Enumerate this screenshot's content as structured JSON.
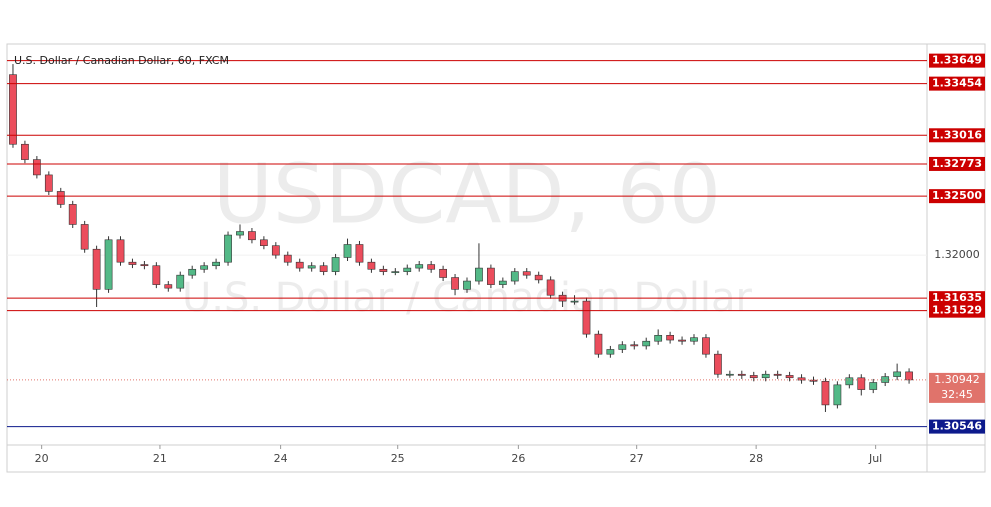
{
  "chart_data": {
    "type": "candlestick",
    "title": "U.S. Dollar / Canadian Dollar, 60, FXCM",
    "watermark": "USDCAD, 60",
    "watermark_subtitle": "U.S. Dollar / Canadian Dollar",
    "up_color": "#53b987",
    "down_color": "#eb4d5c",
    "wick_color": "#333333",
    "open": [
      1.3353,
      1.3294,
      1.3281,
      1.3268,
      1.3254,
      1.3243,
      1.3226,
      1.3205,
      1.3171,
      1.3213,
      1.3194,
      1.3192,
      1.3191,
      1.3175,
      1.3172,
      1.3183,
      1.3188,
      1.3191,
      1.3194,
      1.3217,
      1.322,
      1.3213,
      1.3208,
      1.32,
      1.3194,
      1.3189,
      1.3191,
      1.3186,
      1.3198,
      1.3209,
      1.3194,
      1.3188,
      1.3186,
      1.3186,
      1.3189,
      1.3192,
      1.3188,
      1.3181,
      1.3171,
      1.3178,
      1.3189,
      1.3175,
      1.3178,
      1.3186,
      1.3183,
      1.3179,
      1.3166,
      1.3161,
      1.3161,
      1.3133,
      1.3116,
      1.312,
      1.3124,
      1.3123,
      1.3127,
      1.3132,
      1.3128,
      1.3127,
      1.313,
      1.3116,
      1.3099,
      1.3099,
      1.3098,
      1.3096,
      1.3099,
      1.3098,
      1.3096,
      1.3094,
      1.3093,
      1.3073,
      1.309,
      1.3096,
      1.3086,
      1.3092,
      1.3097,
      1.3101
    ],
    "high": [
      1.3362,
      1.3297,
      1.3284,
      1.3271,
      1.3257,
      1.3246,
      1.3229,
      1.3208,
      1.3216,
      1.3216,
      1.3197,
      1.3195,
      1.3194,
      1.3178,
      1.3186,
      1.3191,
      1.3194,
      1.3197,
      1.322,
      1.3226,
      1.3223,
      1.3216,
      1.3211,
      1.3203,
      1.3197,
      1.3194,
      1.3194,
      1.3201,
      1.3214,
      1.3212,
      1.3197,
      1.3191,
      1.3189,
      1.3192,
      1.3195,
      1.3195,
      1.3191,
      1.3184,
      1.3181,
      1.321,
      1.3192,
      1.3181,
      1.3189,
      1.3189,
      1.3186,
      1.3182,
      1.3169,
      1.3166,
      1.3164,
      1.3136,
      1.3123,
      1.3127,
      1.3127,
      1.313,
      1.3137,
      1.3135,
      1.3131,
      1.3133,
      1.3133,
      1.3119,
      1.3102,
      1.3102,
      1.3101,
      1.3102,
      1.3102,
      1.3101,
      1.3099,
      1.3097,
      1.3096,
      1.3093,
      1.3099,
      1.3099,
      1.3095,
      1.31,
      1.3108,
      1.3104
    ],
    "low": [
      1.3291,
      1.3278,
      1.3265,
      1.3251,
      1.324,
      1.3223,
      1.3202,
      1.3156,
      1.3168,
      1.3191,
      1.3189,
      1.3188,
      1.3172,
      1.3169,
      1.3169,
      1.318,
      1.3185,
      1.3188,
      1.3191,
      1.3214,
      1.321,
      1.3205,
      1.3197,
      1.3191,
      1.3186,
      1.3186,
      1.3183,
      1.3183,
      1.3195,
      1.3191,
      1.3185,
      1.3183,
      1.3183,
      1.3183,
      1.3186,
      1.3185,
      1.3178,
      1.3166,
      1.3168,
      1.3175,
      1.3172,
      1.3172,
      1.3175,
      1.318,
      1.3176,
      1.3163,
      1.3156,
      1.3158,
      1.313,
      1.3113,
      1.3113,
      1.3117,
      1.312,
      1.312,
      1.3124,
      1.3125,
      1.3124,
      1.3124,
      1.3113,
      1.3096,
      1.3096,
      1.3095,
      1.3093,
      1.3093,
      1.3095,
      1.3093,
      1.3091,
      1.309,
      1.3067,
      1.307,
      1.3087,
      1.3081,
      1.3083,
      1.3089,
      1.3094,
      1.3091
    ],
    "close": [
      1.3294,
      1.3281,
      1.3268,
      1.3254,
      1.3243,
      1.3226,
      1.3205,
      1.3171,
      1.3213,
      1.3194,
      1.3192,
      1.3191,
      1.3175,
      1.3172,
      1.3183,
      1.3188,
      1.3191,
      1.3194,
      1.3217,
      1.322,
      1.3213,
      1.3208,
      1.32,
      1.3194,
      1.3189,
      1.3191,
      1.3186,
      1.3198,
      1.3209,
      1.3194,
      1.3188,
      1.3186,
      1.3186,
      1.3189,
      1.3192,
      1.3188,
      1.3181,
      1.3171,
      1.3178,
      1.3189,
      1.3175,
      1.3178,
      1.3186,
      1.3183,
      1.3179,
      1.3166,
      1.3161,
      1.3161,
      1.3133,
      1.3116,
      1.312,
      1.3124,
      1.3123,
      1.3127,
      1.3132,
      1.3128,
      1.3127,
      1.313,
      1.3116,
      1.3099,
      1.3099,
      1.3098,
      1.3096,
      1.3099,
      1.3098,
      1.3096,
      1.3094,
      1.3093,
      1.3073,
      1.309,
      1.3096,
      1.3086,
      1.3092,
      1.3097,
      1.3101,
      1.30942
    ],
    "xlim": [
      -0.5,
      76.5
    ],
    "xticks": [
      {
        "value": 2.4,
        "label": "20"
      },
      {
        "value": 12.3,
        "label": "21"
      },
      {
        "value": 22.4,
        "label": "24"
      },
      {
        "value": 32.2,
        "label": "25"
      },
      {
        "value": 42.3,
        "label": "26"
      },
      {
        "value": 52.2,
        "label": "27"
      },
      {
        "value": 62.2,
        "label": "28"
      },
      {
        "value": 72.2,
        "label": "Jul"
      }
    ],
    "ylim": [
      1.3039,
      1.3379
    ],
    "yticks": [
      {
        "value": 1.32,
        "label": "1.32000"
      }
    ],
    "levels": [
      {
        "value": 1.33649,
        "color": "#cc0000"
      },
      {
        "value": 1.33454,
        "color": "#cc0000"
      },
      {
        "value": 1.33016,
        "color": "#cc0000"
      },
      {
        "value": 1.32773,
        "color": "#cc0000"
      },
      {
        "value": 1.325,
        "label": "1.32500",
        "color": "#cc0000"
      },
      {
        "value": 1.31635,
        "color": "#cc0000"
      },
      {
        "value": 1.31529,
        "color": "#cc0000"
      },
      {
        "value": 1.30546,
        "color": "#0d1a8c"
      }
    ],
    "last_price_color": "#e0736b",
    "countdown": "32:45"
  }
}
